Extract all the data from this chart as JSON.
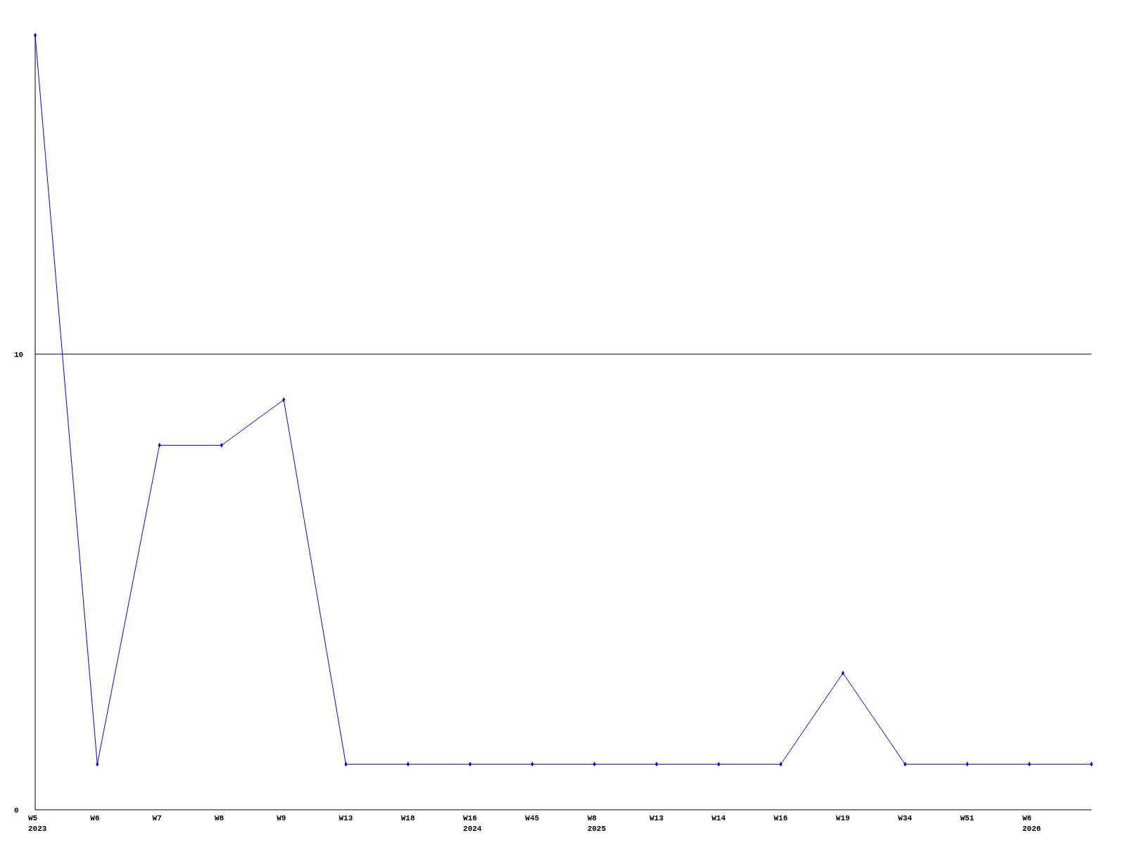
{
  "chart_data": {
    "type": "line",
    "categories": [
      "W5\n2023",
      "W6",
      "W7",
      "W8",
      "W9",
      "W13",
      "W18",
      "W16\n2024",
      "W45",
      "W8\n2025",
      "W13",
      "W14",
      "W16",
      "W19",
      "W34",
      "W51",
      "W6\n2026",
      null
    ],
    "series": [
      {
        "color": "#0000ff",
        "values": [
          17,
          1,
          8,
          8,
          9,
          1,
          1,
          1,
          1,
          1,
          1,
          1,
          1,
          3,
          1,
          1,
          1,
          1
        ]
      }
    ],
    "ylim": [
      0,
      17
    ],
    "yticks": [
      0,
      10
    ],
    "grid": "y",
    "marker": "diamond",
    "line_style": "solid"
  }
}
